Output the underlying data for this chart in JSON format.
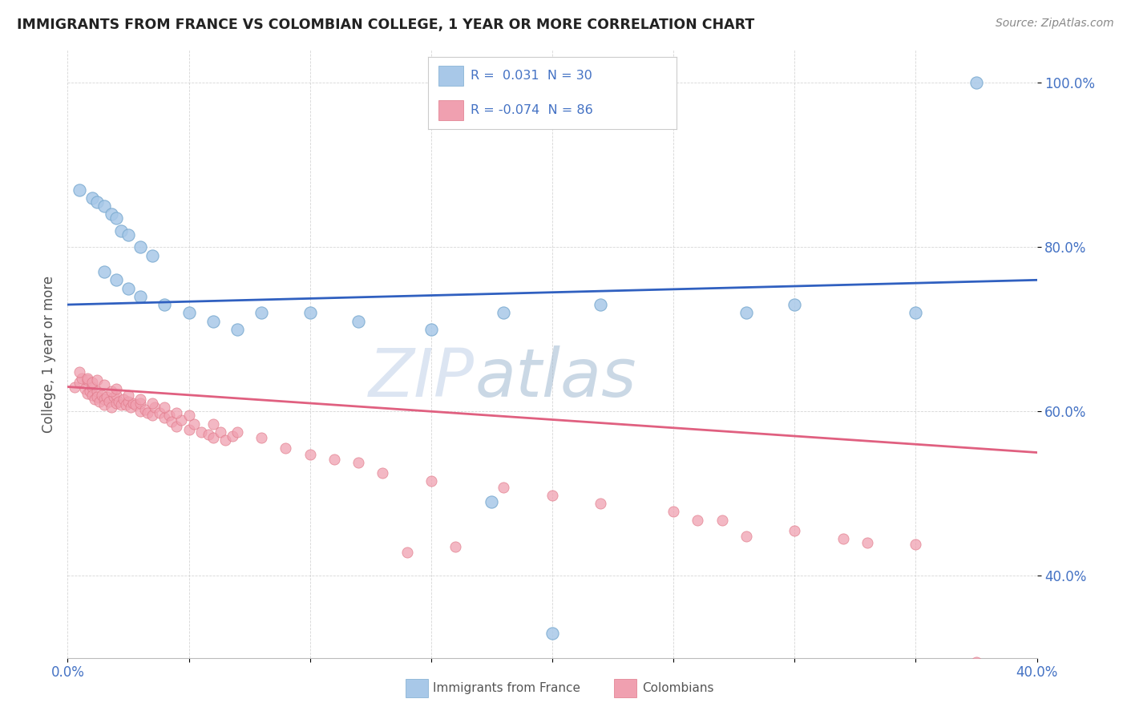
{
  "title": "IMMIGRANTS FROM FRANCE VS COLOMBIAN COLLEGE, 1 YEAR OR MORE CORRELATION CHART",
  "source_text": "Source: ZipAtlas.com",
  "ylabel": "College, 1 year or more",
  "xlim": [
    0.0,
    0.4
  ],
  "ylim": [
    0.3,
    1.04
  ],
  "xtick_positions": [
    0.0,
    0.05,
    0.1,
    0.15,
    0.2,
    0.25,
    0.3,
    0.35,
    0.4
  ],
  "xtick_labels": [
    "0.0%",
    "",
    "",
    "",
    "",
    "",
    "",
    "",
    "40.0%"
  ],
  "ytick_positions": [
    0.4,
    0.6,
    0.8,
    1.0
  ],
  "ytick_labels": [
    "40.0%",
    "60.0%",
    "80.0%",
    "100.0%"
  ],
  "france_color": "#a8c8e8",
  "colombia_color": "#f0a0b0",
  "france_edge_color": "#7aaad0",
  "colombia_edge_color": "#e07888",
  "france_line_color": "#3060c0",
  "colombia_line_color": "#e06080",
  "watermark": "ZIPatlas",
  "watermark_color_zip": "#c0d0e8",
  "watermark_color_atlas": "#a0b8d0",
  "france_line_intercept": 0.73,
  "france_line_slope": 0.075,
  "colombia_line_intercept": 0.63,
  "colombia_line_slope": -0.2,
  "france_points_x": [
    0.005,
    0.01,
    0.012,
    0.015,
    0.018,
    0.02,
    0.022,
    0.025,
    0.03,
    0.035,
    0.015,
    0.02,
    0.025,
    0.03,
    0.04,
    0.05,
    0.06,
    0.07,
    0.08,
    0.1,
    0.12,
    0.15,
    0.18,
    0.22,
    0.28,
    0.3,
    0.35,
    0.175,
    0.2,
    0.375
  ],
  "france_points_y": [
    0.87,
    0.86,
    0.855,
    0.85,
    0.84,
    0.835,
    0.82,
    0.815,
    0.8,
    0.79,
    0.77,
    0.76,
    0.75,
    0.74,
    0.73,
    0.72,
    0.71,
    0.7,
    0.72,
    0.72,
    0.71,
    0.7,
    0.72,
    0.73,
    0.72,
    0.73,
    0.72,
    0.49,
    0.33,
    1.0
  ],
  "colombia_points_x": [
    0.003,
    0.005,
    0.006,
    0.007,
    0.008,
    0.008,
    0.009,
    0.01,
    0.01,
    0.011,
    0.012,
    0.012,
    0.013,
    0.014,
    0.015,
    0.015,
    0.016,
    0.017,
    0.018,
    0.019,
    0.02,
    0.02,
    0.021,
    0.022,
    0.023,
    0.024,
    0.025,
    0.026,
    0.027,
    0.028,
    0.03,
    0.03,
    0.032,
    0.033,
    0.035,
    0.036,
    0.038,
    0.04,
    0.042,
    0.043,
    0.045,
    0.047,
    0.05,
    0.052,
    0.055,
    0.058,
    0.06,
    0.063,
    0.065,
    0.068,
    0.005,
    0.008,
    0.01,
    0.012,
    0.015,
    0.018,
    0.02,
    0.025,
    0.03,
    0.035,
    0.04,
    0.045,
    0.05,
    0.06,
    0.07,
    0.08,
    0.09,
    0.1,
    0.11,
    0.12,
    0.13,
    0.15,
    0.18,
    0.2,
    0.22,
    0.26,
    0.3,
    0.14,
    0.16,
    0.28,
    0.32,
    0.33,
    0.35,
    0.25,
    0.27,
    0.375
  ],
  "colombia_points_y": [
    0.63,
    0.635,
    0.64,
    0.628,
    0.622,
    0.638,
    0.625,
    0.63,
    0.62,
    0.615,
    0.625,
    0.618,
    0.612,
    0.62,
    0.615,
    0.608,
    0.618,
    0.612,
    0.605,
    0.618,
    0.61,
    0.62,
    0.612,
    0.608,
    0.615,
    0.608,
    0.612,
    0.605,
    0.61,
    0.608,
    0.6,
    0.61,
    0.602,
    0.598,
    0.595,
    0.605,
    0.598,
    0.592,
    0.595,
    0.588,
    0.582,
    0.59,
    0.578,
    0.585,
    0.575,
    0.572,
    0.568,
    0.575,
    0.565,
    0.57,
    0.648,
    0.64,
    0.635,
    0.638,
    0.632,
    0.625,
    0.628,
    0.62,
    0.615,
    0.61,
    0.605,
    0.598,
    0.595,
    0.585,
    0.575,
    0.568,
    0.555,
    0.548,
    0.542,
    0.538,
    0.525,
    0.515,
    0.508,
    0.498,
    0.488,
    0.468,
    0.455,
    0.428,
    0.435,
    0.448,
    0.445,
    0.44,
    0.438,
    0.478,
    0.468,
    0.295
  ]
}
